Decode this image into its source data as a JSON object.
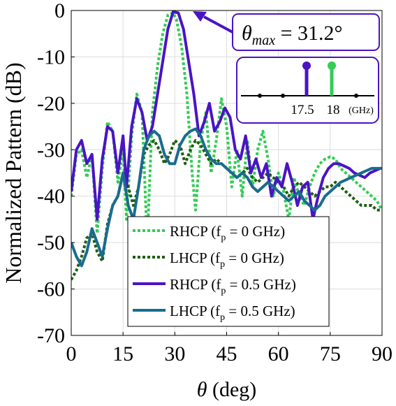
{
  "chart_data": {
    "type": "line",
    "xlabel": "θ (deg)",
    "ylabel": "Normalized Pattern (dB)",
    "xlim": [
      0,
      90
    ],
    "ylim": [
      -70,
      0
    ],
    "xticks": [
      0,
      15,
      30,
      45,
      60,
      75,
      90
    ],
    "yticks": [
      0,
      -10,
      -20,
      -30,
      -40,
      -50,
      -60,
      -70
    ],
    "grid": true,
    "legend_position": "bottom-center",
    "series": [
      {
        "name": "RHCP (f_p = 0 GHz)",
        "color": "#33cc55",
        "dash": "dotted",
        "width": 4,
        "x": [
          0,
          1.5,
          3,
          4.5,
          6,
          7.5,
          9,
          10.5,
          12,
          13.5,
          15,
          16,
          17.5,
          19,
          20.5,
          22,
          23.5,
          25,
          26.5,
          28,
          29.5,
          30.5,
          32,
          33.5,
          35,
          36,
          37.5,
          39,
          40.5,
          42,
          43.5,
          45,
          46.5,
          48,
          49.5,
          51,
          52.5,
          54,
          55.5,
          57,
          58.5,
          60,
          61.5,
          63,
          64.5,
          66,
          67.5,
          69,
          70.5,
          72,
          73.5,
          75,
          76.5,
          78,
          79.5,
          81,
          82.5,
          84,
          85.5,
          87,
          88.5,
          90
        ],
        "values": [
          -40,
          -31,
          -30,
          -36,
          -31,
          -48,
          -34,
          -24,
          -26,
          -37,
          -30,
          -45,
          -27,
          -18,
          -22,
          -50,
          -22,
          -12,
          -5,
          -1,
          -0.5,
          -2,
          -8,
          -18,
          -35,
          -43,
          -28,
          -22,
          -35,
          -28,
          -19,
          -25,
          -38,
          -30,
          -40,
          -28,
          -38,
          -30,
          -26,
          -32,
          -40,
          -35,
          -39,
          -45,
          -36,
          -40,
          -42,
          -38,
          -35,
          -33,
          -32,
          -31.5,
          -32,
          -34,
          -35,
          -36,
          -37,
          -38,
          -39,
          -40,
          -41,
          -43
        ]
      },
      {
        "name": "LHCP (f_p = 0 GHz)",
        "color": "#1f5e12",
        "dash": "dotted",
        "width": 4,
        "x": [
          0,
          1.5,
          3,
          4.5,
          6,
          7.5,
          9,
          10.5,
          12,
          13.5,
          15,
          16.5,
          18,
          19.5,
          21,
          22.5,
          24,
          25.5,
          27,
          28.5,
          30,
          31.5,
          33,
          34.5,
          36,
          37.5,
          39,
          40.5,
          42,
          43.5,
          45,
          46.5,
          48,
          49.5,
          51,
          52.5,
          54,
          55.5,
          57,
          58.5,
          60,
          61.5,
          63,
          64.5,
          66,
          67.5,
          69,
          70.5,
          72,
          73.5,
          75,
          76.5,
          78,
          79.5,
          81,
          82.5,
          84,
          85.5,
          87,
          88.5,
          90
        ],
        "values": [
          -58,
          -56,
          -53,
          -49,
          -48,
          -52,
          -54,
          -46,
          -42,
          -40,
          -35,
          -38,
          -42,
          -38,
          -31,
          -29,
          -28,
          -30,
          -33,
          -31,
          -28,
          -29,
          -33,
          -30,
          -28,
          -29,
          -31,
          -33,
          -32,
          -33,
          -34,
          -35,
          -36,
          -35,
          -34,
          -36,
          -37,
          -36,
          -35,
          -36,
          -37,
          -38,
          -40,
          -38,
          -37,
          -38,
          -39,
          -40,
          -39,
          -38,
          -38,
          -37,
          -38,
          -39,
          -40,
          -41,
          -42,
          -42,
          -42,
          -43,
          -43
        ]
      },
      {
        "name": "RHCP (f_p = 0.5 GHz)",
        "color": "#4a14c4",
        "dash": "solid",
        "width": 4,
        "x": [
          0,
          1.5,
          3,
          4.5,
          6,
          7.5,
          9,
          10.5,
          12,
          13.5,
          15,
          16,
          17.5,
          19,
          20.5,
          22,
          23.5,
          25,
          26.5,
          28,
          29.5,
          31,
          32.5,
          34,
          35.5,
          37,
          38.5,
          40,
          41.5,
          43,
          44.5,
          46,
          47.5,
          49,
          50.5,
          52,
          53.5,
          55,
          56.5,
          58,
          59.5,
          61,
          62.5,
          64,
          65.5,
          67,
          68.5,
          70,
          71.5,
          73,
          74.5,
          76,
          77.5,
          79,
          80.5,
          82,
          83.5,
          85,
          86.5,
          88,
          89.5
        ],
        "values": [
          -39,
          -30,
          -28,
          -33,
          -31,
          -45,
          -32,
          -25,
          -26,
          -35,
          -27,
          -38,
          -25,
          -19,
          -22,
          -28,
          -25,
          -18,
          -11,
          -4,
          -0.3,
          -0.5,
          -4,
          -11,
          -18,
          -27,
          -24,
          -20,
          -26,
          -24,
          -21,
          -23,
          -30,
          -32,
          -27,
          -35,
          -32,
          -36,
          -33,
          -40,
          -36,
          -38,
          -33,
          -37,
          -42,
          -38,
          -37,
          -45,
          -40,
          -36,
          -34,
          -33,
          -33,
          -33.5,
          -34,
          -35,
          -35.5,
          -36,
          -35,
          -34.5,
          -34
        ]
      },
      {
        "name": "LHCP (f_p = 0.5 GHz)",
        "color": "#1a6b8f",
        "dash": "solid",
        "width": 4,
        "x": [
          0,
          1.5,
          3,
          4.5,
          6,
          7.5,
          9,
          10.5,
          12,
          13.5,
          15,
          16.5,
          18,
          19.5,
          21,
          22.5,
          24,
          25.5,
          27,
          28.5,
          30,
          31.5,
          33,
          34.5,
          36,
          37.5,
          39,
          40.5,
          42,
          43.5,
          45,
          46.5,
          48,
          49.5,
          51,
          52.5,
          54,
          55.5,
          57,
          58.5,
          60,
          61.5,
          63,
          64.5,
          66,
          67.5,
          69,
          70.5,
          72,
          73.5,
          75,
          76.5,
          78,
          79.5,
          81,
          82.5,
          84,
          85.5,
          87,
          88.5,
          90
        ],
        "values": [
          -50,
          -53,
          -55,
          -52,
          -47,
          -50,
          -53,
          -47,
          -42,
          -40,
          -35,
          -42,
          -45,
          -38,
          -30,
          -27,
          -26,
          -27,
          -31,
          -33,
          -33,
          -29,
          -27,
          -26,
          -25.5,
          -27,
          -30,
          -32,
          -33,
          -33,
          -34,
          -35,
          -36,
          -35,
          -36,
          -38,
          -39,
          -38,
          -37,
          -38,
          -39,
          -40,
          -41,
          -40,
          -39,
          -41,
          -42,
          -43,
          -42,
          -40,
          -39,
          -38,
          -37,
          -36.5,
          -36,
          -35.5,
          -35,
          -34.5,
          -34,
          -34,
          -34
        ]
      }
    ],
    "legend": [
      {
        "prefix": "RHCP (f",
        "sub": "p",
        "suffix": " = 0 GHz)"
      },
      {
        "prefix": "LHCP (f",
        "sub": "p",
        "suffix": " = 0 GHz)"
      },
      {
        "prefix": "RHCP (f",
        "sub": "p",
        "suffix": " = 0.5 GHz)"
      },
      {
        "prefix": "LHCP (f",
        "sub": "p",
        "suffix": " = 0.5 GHz)"
      }
    ],
    "annotation": {
      "text_theta": "θ",
      "text_sub": "max",
      "text_rest": " = 31.2°",
      "border_color": "#4a14c4"
    },
    "inset": {
      "labels": [
        "17.5",
        "18",
        "(GHz)"
      ],
      "stems": [
        {
          "label": "17.5",
          "color": "#4a14c4"
        },
        {
          "label": "18",
          "color": "#33cc55"
        }
      ]
    }
  }
}
